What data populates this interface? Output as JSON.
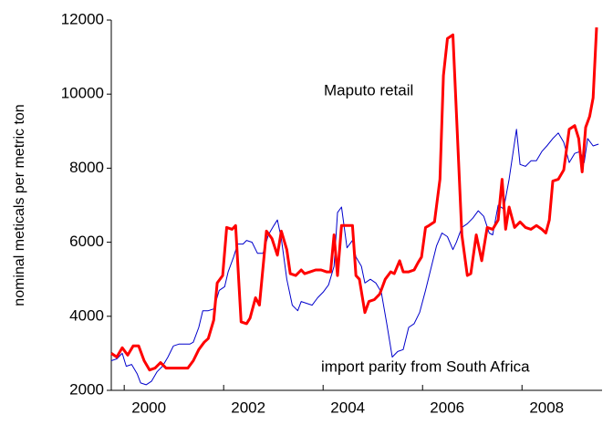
{
  "chart_data": {
    "type": "line",
    "y_label": "nominal meticals per metric ton",
    "xlim": [
      1999.74,
      2009.61
    ],
    "xticks": [
      2000,
      2002,
      2004,
      2006,
      2008
    ],
    "ylim": [
      2000,
      12000
    ],
    "yticks": [
      2000,
      4000,
      6000,
      8000,
      10000,
      12000
    ],
    "series": [
      {
        "name": "Maputo retail",
        "color": "#ff0000",
        "width": 3,
        "x": [
          1999.74,
          1999.85,
          1999.96,
          2000.07,
          2000.18,
          2000.29,
          2000.4,
          2000.51,
          2000.62,
          2000.73,
          2000.84,
          2000.95,
          2001.06,
          2001.17,
          2001.28,
          2001.39,
          2001.5,
          2001.61,
          2001.69,
          2001.8,
          2001.87,
          2001.98,
          2002.06,
          2002.17,
          2002.24,
          2002.35,
          2002.46,
          2002.53,
          2002.64,
          2002.72,
          2002.86,
          2002.97,
          2003.08,
          2003.16,
          2003.27,
          2003.34,
          2003.45,
          2003.56,
          2003.63,
          2003.74,
          2003.85,
          2003.96,
          2004.07,
          2004.15,
          2004.22,
          2004.29,
          2004.37,
          2004.48,
          2004.59,
          2004.66,
          2004.73,
          2004.84,
          2004.92,
          2005.03,
          2005.14,
          2005.25,
          2005.36,
          2005.43,
          2005.54,
          2005.61,
          2005.72,
          2005.83,
          2005.91,
          2005.98,
          2006.06,
          2006.13,
          2006.24,
          2006.35,
          2006.42,
          2006.5,
          2006.61,
          2006.72,
          2006.79,
          2006.9,
          2006.97,
          2007.08,
          2007.19,
          2007.3,
          2007.41,
          2007.52,
          2007.6,
          2007.67,
          2007.74,
          2007.85,
          2007.96,
          2008.07,
          2008.18,
          2008.29,
          2008.4,
          2008.48,
          2008.55,
          2008.62,
          2008.73,
          2008.84,
          2008.95,
          2009.06,
          2009.14,
          2009.21,
          2009.28,
          2009.36,
          2009.43,
          2009.5
        ],
        "values": [
          3000,
          2900,
          3150,
          2950,
          3200,
          3200,
          2800,
          2550,
          2600,
          2750,
          2600,
          2600,
          2600,
          2600,
          2600,
          2800,
          3100,
          3300,
          3400,
          3900,
          4900,
          5100,
          6400,
          6350,
          6450,
          3850,
          3800,
          3950,
          4500,
          4300,
          6300,
          6100,
          5650,
          6300,
          5800,
          5150,
          5100,
          5250,
          5150,
          5200,
          5250,
          5250,
          5200,
          5200,
          6200,
          5100,
          6450,
          6450,
          6450,
          5100,
          5000,
          4100,
          4400,
          4450,
          4600,
          5000,
          5200,
          5150,
          5500,
          5200,
          5200,
          5250,
          5450,
          5600,
          6400,
          6450,
          6550,
          7700,
          10500,
          11500,
          11600,
          8300,
          6200,
          5100,
          5150,
          6200,
          5500,
          6400,
          6350,
          6600,
          7700,
          6350,
          6950,
          6400,
          6550,
          6400,
          6350,
          6450,
          6350,
          6250,
          6600,
          7650,
          7700,
          7950,
          9050,
          9150,
          8800,
          7900,
          9100,
          9400,
          9900,
          11800
        ]
      },
      {
        "name": "import parity from South Africa",
        "color": "#0000cc",
        "width": 1,
        "x": [
          1999.74,
          1999.85,
          1999.96,
          2000.04,
          2000.15,
          2000.26,
          2000.33,
          2000.44,
          2000.55,
          2000.66,
          2000.77,
          2000.88,
          2000.99,
          2001.1,
          2001.21,
          2001.32,
          2001.39,
          2001.5,
          2001.58,
          2001.69,
          2001.8,
          2001.91,
          2002.02,
          2002.09,
          2002.2,
          2002.28,
          2002.39,
          2002.46,
          2002.57,
          2002.68,
          2002.79,
          2002.9,
          2003.01,
          2003.08,
          2003.16,
          2003.27,
          2003.38,
          2003.49,
          2003.56,
          2003.67,
          2003.78,
          2003.89,
          2004.0,
          2004.11,
          2004.22,
          2004.29,
          2004.37,
          2004.48,
          2004.59,
          2004.66,
          2004.77,
          2004.84,
          2004.95,
          2005.06,
          2005.17,
          2005.28,
          2005.39,
          2005.5,
          2005.61,
          2005.72,
          2005.83,
          2005.94,
          2006.06,
          2006.17,
          2006.28,
          2006.39,
          2006.5,
          2006.61,
          2006.68,
          2006.79,
          2006.9,
          2007.01,
          2007.12,
          2007.23,
          2007.34,
          2007.41,
          2007.52,
          2007.63,
          2007.74,
          2007.89,
          2007.96,
          2008.07,
          2008.18,
          2008.29,
          2008.4,
          2008.5,
          2008.62,
          2008.73,
          2008.84,
          2008.95,
          2009.06,
          2009.17,
          2009.25,
          2009.32,
          2009.43,
          2009.54
        ],
        "values": [
          2800,
          2850,
          3000,
          2650,
          2700,
          2450,
          2200,
          2150,
          2250,
          2500,
          2650,
          2900,
          3200,
          3250,
          3250,
          3250,
          3300,
          3700,
          4150,
          4150,
          4200,
          4700,
          4800,
          5200,
          5600,
          5950,
          5950,
          6050,
          6000,
          5700,
          5700,
          6200,
          6450,
          6600,
          6100,
          5000,
          4300,
          4150,
          4400,
          4350,
          4300,
          4500,
          4650,
          4850,
          5350,
          6800,
          6950,
          5850,
          6050,
          5600,
          5350,
          4900,
          5000,
          4900,
          4650,
          3800,
          2900,
          3050,
          3100,
          3700,
          3800,
          4100,
          4700,
          5300,
          5900,
          6250,
          6150,
          5800,
          6000,
          6400,
          6500,
          6650,
          6850,
          6700,
          6250,
          6200,
          7000,
          6900,
          7700,
          9050,
          8100,
          8050,
          8200,
          8200,
          8450,
          8600,
          8800,
          8950,
          8700,
          8150,
          8400,
          8450,
          8150,
          8800,
          8600,
          8650
        ]
      }
    ]
  }
}
